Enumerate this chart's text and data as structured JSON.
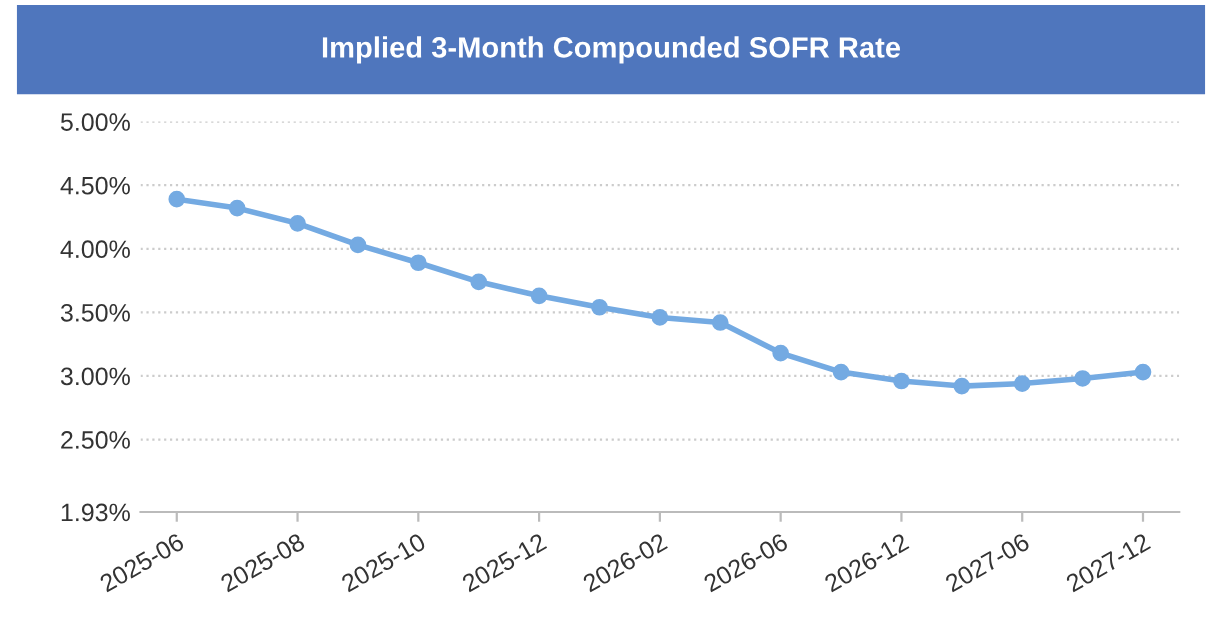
{
  "chart_data": {
    "type": "line",
    "title": "Implied 3-Month Compounded SOFR Rate",
    "categories": [
      "2025-06",
      null,
      "2025-08",
      null,
      "2025-10",
      null,
      "2025-12",
      null,
      "2026-02",
      null,
      "2026-06",
      null,
      "2026-12",
      null,
      "2027-06",
      null,
      "2027-12"
    ],
    "series": [
      {
        "color": "#74aae2",
        "values": [
          4.39,
          4.32,
          4.2,
          4.03,
          3.89,
          3.74,
          3.63,
          3.54,
          3.46,
          3.42,
          3.18,
          3.03,
          2.96,
          2.92,
          2.94,
          2.98,
          3.03
        ]
      }
    ],
    "ylim": [
      1.93,
      5.0
    ],
    "yticks": [
      {
        "value": 1.93,
        "label": "1.93%"
      },
      {
        "value": 2.5,
        "label": "2.50%"
      },
      {
        "value": 3.0,
        "label": "3.00%"
      },
      {
        "value": 3.5,
        "label": "3.50%"
      },
      {
        "value": 4.0,
        "label": "4.00%"
      },
      {
        "value": 4.5,
        "label": "4.50%"
      },
      {
        "value": 5.0,
        "label": "5.00%"
      }
    ],
    "grid": "y",
    "marker": "circle",
    "line_style": "solid",
    "legend": false
  }
}
